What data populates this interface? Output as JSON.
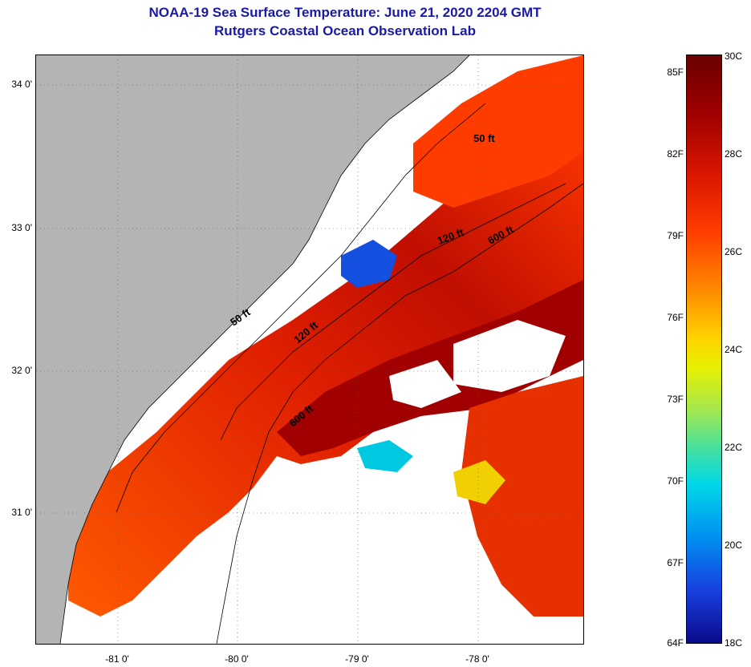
{
  "header": {
    "title": "NOAA-19 Sea Surface Temperature:  June 21, 2020 2204 GMT",
    "subtitle": "Rutgers Coastal Ocean Observation Lab"
  },
  "map": {
    "lat_labels": [
      "34 0'",
      "33 0'",
      "32 0'",
      "31 0'"
    ],
    "lon_labels": [
      "-81 0'",
      "-80 0'",
      "-79 0'",
      "-78 0'"
    ],
    "contour_labels": [
      "50 ft",
      "120 ft",
      "600 ft",
      "50 ft",
      "120 ft",
      "600 ft"
    ],
    "colors": {
      "land": "#b4b4b4",
      "cloud": "#ffffff",
      "warm": "#ff3c00",
      "hot": "#a00000",
      "cool": "#00c8e0"
    }
  },
  "colorbar": {
    "fahrenheit": [
      "85F",
      "82F",
      "79F",
      "76F",
      "73F",
      "70F",
      "67F",
      "64F"
    ],
    "celsius": [
      "30C",
      "28C",
      "26C",
      "24C",
      "22C",
      "20C",
      "18C"
    ],
    "min_c": 18,
    "max_c": 30
  }
}
